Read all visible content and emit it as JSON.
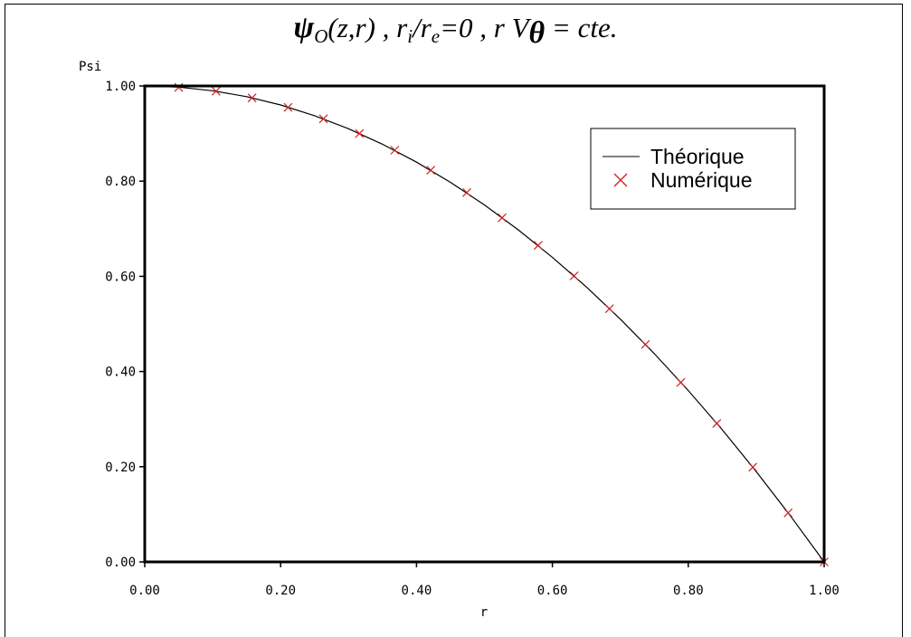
{
  "chart_data": {
    "type": "line",
    "title_parts": {
      "psi": "ψ",
      "psi_sub": "O",
      "args": "(z,r) , r",
      "ri_sub": "i",
      "slash": "/r",
      "re_sub": "e",
      "eq": "=0 , r V",
      "theta_sub": "θ",
      "tail": " = cte."
    },
    "xlabel": "r",
    "ylabel": "Psi",
    "xlim": [
      0,
      1
    ],
    "ylim": [
      0,
      1
    ],
    "x_ticks": [
      "0.00",
      "0.20",
      "0.40",
      "0.60",
      "0.80",
      "1.00"
    ],
    "y_ticks": [
      "0.00",
      "0.20",
      "0.40",
      "0.60",
      "0.80",
      "1.00"
    ],
    "legend_position": "top-right",
    "series": [
      {
        "name": "Théorique",
        "kind": "line",
        "color": "#000000",
        "x": [
          0,
          0.05,
          0.1,
          0.15,
          0.2,
          0.25,
          0.3,
          0.35,
          0.4,
          0.45,
          0.5,
          0.55,
          0.6,
          0.65,
          0.7,
          0.75,
          0.8,
          0.85,
          0.9,
          0.95,
          1.0
        ],
        "y": [
          1.0,
          0.9975,
          0.99,
          0.9775,
          0.96,
          0.9375,
          0.91,
          0.8775,
          0.84,
          0.7975,
          0.75,
          0.6975,
          0.64,
          0.5775,
          0.51,
          0.4375,
          0.36,
          0.2775,
          0.19,
          0.0975,
          0.0
        ]
      },
      {
        "name": "Numérique",
        "kind": "scatter",
        "marker": "x",
        "color": "#cc2222",
        "x": [
          0.05,
          0.105,
          0.158,
          0.211,
          0.263,
          0.316,
          0.368,
          0.421,
          0.474,
          0.526,
          0.579,
          0.632,
          0.684,
          0.737,
          0.789,
          0.842,
          0.895,
          0.947,
          1.0
        ],
        "y": [
          0.997,
          0.989,
          0.975,
          0.955,
          0.931,
          0.9,
          0.865,
          0.823,
          0.776,
          0.723,
          0.665,
          0.601,
          0.532,
          0.457,
          0.377,
          0.291,
          0.199,
          0.103,
          0.0
        ]
      }
    ]
  }
}
